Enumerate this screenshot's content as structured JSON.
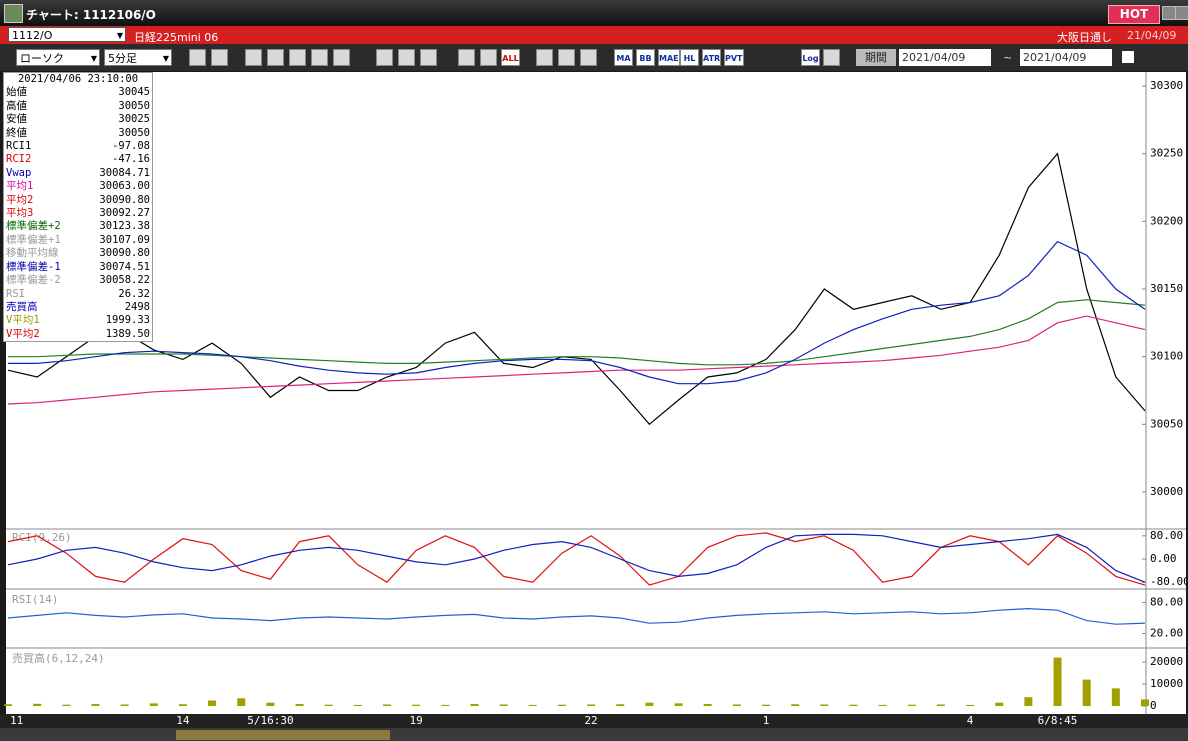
{
  "window": {
    "title": "チャート: 1112106/O",
    "hot": "HOT"
  },
  "header": {
    "symbol": "1112/O",
    "name": "日経225mini 06",
    "market": "大阪日通し",
    "date": "21/04/09"
  },
  "toolbar": {
    "chart_type": "ローソク",
    "interval": "5分足",
    "all": "ALL",
    "buttons": [
      "MA",
      "BB",
      "MAE",
      "HL",
      "ATR",
      "PVT"
    ],
    "log": "Log",
    "period": "期間",
    "from": "2021/04/09",
    "tilde": "~",
    "to": "2021/04/09"
  },
  "info": {
    "datetime": "2021/04/06 23:10:00",
    "rows": [
      [
        "始値",
        "30045"
      ],
      [
        "高値",
        "30050"
      ],
      [
        "安値",
        "30025"
      ],
      [
        "終値",
        "30050"
      ],
      [
        "RCI1",
        "-97.08"
      ],
      [
        "RCI2",
        "-47.16"
      ],
      [
        "Vwap",
        "30084.71"
      ],
      [
        "平均1",
        "30063.00"
      ],
      [
        "平均2",
        "30090.80"
      ],
      [
        "平均3",
        "30092.27"
      ],
      [
        "標準偏差+2",
        "30123.38"
      ],
      [
        "標準偏差+1",
        "30107.09"
      ],
      [
        "移動平均線",
        "30090.80"
      ],
      [
        "標準偏差-1",
        "30074.51"
      ],
      [
        "標準偏差-2",
        "30058.22"
      ],
      [
        "RSI",
        "26.32"
      ],
      [
        "売買高",
        "2498"
      ],
      [
        "V平均1",
        "1999.33"
      ],
      [
        "V平均2",
        "1389.50"
      ]
    ]
  },
  "chart_data": [
    {
      "type": "line",
      "categories": [
        "11",
        null,
        null,
        null,
        null,
        null,
        "14",
        null,
        null,
        "5/16:30",
        null,
        null,
        null,
        null,
        "19",
        null,
        null,
        null,
        null,
        null,
        "22",
        null,
        null,
        null,
        null,
        null,
        "1",
        null,
        null,
        null,
        null,
        null,
        null,
        "4",
        null,
        null,
        "6/8:45",
        null,
        null,
        null
      ],
      "series": [
        {
          "color": "#000000",
          "values": [
            30090,
            30085,
            30100,
            30115,
            30118,
            30105,
            30098,
            30110,
            30095,
            30070,
            30085,
            30075,
            30075,
            30085,
            30092,
            30110,
            30118,
            30095,
            30092,
            30100,
            30098,
            30075,
            30050,
            30068,
            30085,
            30088,
            30098,
            30120,
            30150,
            30135,
            30140,
            30145,
            30135,
            30140,
            30175,
            30225,
            30250,
            30150,
            30085,
            30060
          ]
        },
        {
          "color": "#e02080",
          "values": [
            30065,
            30066,
            30068,
            30070,
            30072,
            30074,
            30075,
            30076,
            30077,
            30078,
            30079,
            30080,
            30081,
            30082,
            30083,
            30084,
            30085,
            30086,
            30087,
            30088,
            30089,
            30090,
            30090,
            30090,
            30091,
            30092,
            30093,
            30094,
            30095,
            30096,
            30097,
            30099,
            30101,
            30104,
            30107,
            30112,
            30125,
            30130,
            30125,
            30120
          ]
        },
        {
          "color": "#208020",
          "values": [
            30100,
            30100,
            30101,
            30102,
            30102,
            30102,
            30102,
            30101,
            30100,
            30099,
            30098,
            30097,
            30096,
            30095,
            30095,
            30096,
            30097,
            30098,
            30099,
            30100,
            30100,
            30099,
            30097,
            30095,
            30094,
            30094,
            30095,
            30097,
            30100,
            30103,
            30106,
            30109,
            30112,
            30115,
            30120,
            30128,
            30140,
            30142,
            30140,
            30138
          ]
        },
        {
          "color": "#1020c0",
          "values": [
            30095,
            30095,
            30097,
            30100,
            30103,
            30104,
            30103,
            30102,
            30100,
            30097,
            30093,
            30090,
            30088,
            30087,
            30088,
            30092,
            30095,
            30097,
            30098,
            30098,
            30097,
            30092,
            30085,
            30080,
            30080,
            30082,
            30088,
            30098,
            30110,
            30120,
            30128,
            30135,
            30138,
            30140,
            30145,
            30160,
            30185,
            30175,
            30150,
            30135
          ]
        }
      ],
      "ylim": [
        29990,
        30310
      ],
      "yticks": [
        30000,
        30050,
        30100,
        30150,
        30200,
        30250,
        30300
      ]
    },
    {
      "type": "line",
      "title": "RCI(9,26)",
      "series": [
        {
          "color": "#e01010",
          "values": [
            60,
            80,
            20,
            -60,
            -80,
            0,
            70,
            50,
            -40,
            -70,
            60,
            80,
            -20,
            -80,
            30,
            80,
            40,
            -60,
            -80,
            20,
            80,
            10,
            -90,
            -60,
            40,
            80,
            90,
            60,
            80,
            30,
            -80,
            -60,
            40,
            80,
            60,
            -20,
            80,
            20,
            -60,
            -90
          ]
        },
        {
          "color": "#1020c0",
          "values": [
            -20,
            0,
            30,
            40,
            20,
            -10,
            -30,
            -40,
            -20,
            10,
            30,
            40,
            30,
            10,
            -10,
            -20,
            0,
            30,
            50,
            60,
            40,
            0,
            -40,
            -60,
            -50,
            -20,
            40,
            80,
            85,
            85,
            80,
            60,
            40,
            50,
            60,
            70,
            85,
            40,
            -40,
            -80
          ]
        }
      ],
      "ylim": [
        -100,
        100
      ],
      "yticks": [
        {
          "value": 80,
          "label": "80.00"
        },
        {
          "value": 0,
          "label": "0.00"
        },
        {
          "value": -80,
          "label": "-80.00"
        }
      ]
    },
    {
      "type": "line",
      "title": "RSI(14)",
      "series": [
        {
          "color": "#2060d0",
          "values": [
            50,
            55,
            60,
            55,
            52,
            56,
            58,
            50,
            48,
            45,
            50,
            52,
            50,
            48,
            52,
            55,
            57,
            50,
            48,
            52,
            54,
            50,
            40,
            42,
            50,
            55,
            58,
            60,
            62,
            58,
            60,
            62,
            58,
            60,
            65,
            68,
            65,
            45,
            38,
            40
          ]
        }
      ],
      "ylim": [
        0,
        100
      ],
      "yticks": [
        {
          "value": 80,
          "label": "80.00"
        },
        {
          "value": 20,
          "label": "20.00"
        }
      ]
    },
    {
      "type": "bar",
      "title": "売買高(6,12,24)",
      "color": "#a0a000",
      "values": [
        800,
        1000,
        600,
        900,
        700,
        1200,
        800,
        2500,
        3500,
        1500,
        900,
        600,
        500,
        700,
        600,
        500,
        900,
        700,
        500,
        600,
        700,
        800,
        1500,
        1200,
        900,
        700,
        600,
        800,
        700,
        600,
        500,
        600,
        700,
        500,
        1500,
        4000,
        22000,
        12000,
        8000,
        3000
      ],
      "ylim": [
        0,
        25000
      ],
      "yticks": [
        0,
        10000,
        20000
      ]
    }
  ]
}
